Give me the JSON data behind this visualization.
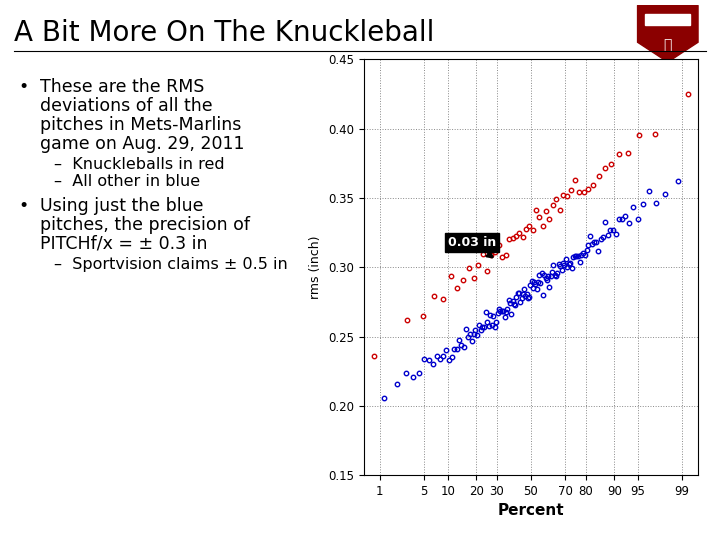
{
  "title": "A Bit More On The Knuckleball",
  "title_fontsize": 20,
  "background_color": "#ffffff",
  "chart_bg": "#ffffff",
  "ylabel": "rms (inch)",
  "xlabel": "Percent",
  "ylim": [
    0.15,
    0.45
  ],
  "annotation_text": "0.03 in",
  "blue_color": "#0000cc",
  "red_color": "#cc0000",
  "grid_color": "#888888",
  "xtick_labels": [
    "1",
    "5",
    "10",
    "20",
    "30",
    "50",
    "70",
    "80",
    "90",
    "95",
    "99"
  ],
  "xtick_pcts": [
    1,
    5,
    10,
    20,
    30,
    50,
    70,
    80,
    90,
    95,
    99
  ],
  "ytick_vals": [
    0.15,
    0.2,
    0.25,
    0.3,
    0.35,
    0.4,
    0.45
  ],
  "ytick_labels": [
    "0.15",
    "0.20",
    "0.25",
    "0.30",
    "0.35",
    "0.40",
    "0.45"
  ],
  "bullet1_line1": "These are the RMS",
  "bullet1_line2": "deviations of all the",
  "bullet1_line3": "pitches in Mets-Marlins",
  "bullet1_line4": "game on Aug. 29, 2011",
  "sub1a": "–  Knuckleballs in red",
  "sub1b": "–  All other in blue",
  "bullet2_line1": "Using just the blue",
  "bullet2_line2": "pitches, the precision of",
  "bullet2_line3": "PITCHf/x = ± 0.3 in",
  "sub2a": "–  Sportvision claims ± 0.5 in",
  "font_family": "DejaVu Sans"
}
